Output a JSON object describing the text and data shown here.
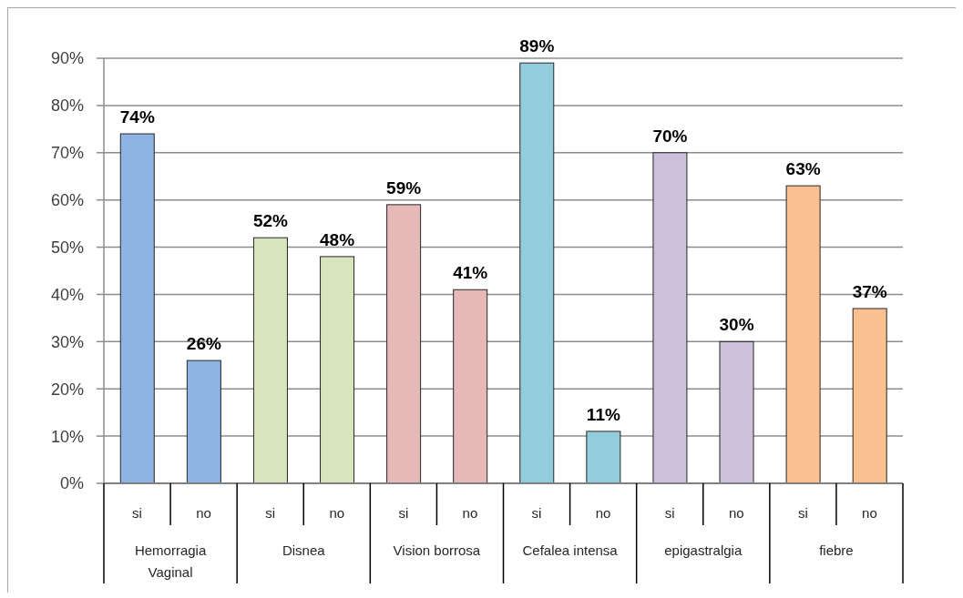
{
  "chart_data": {
    "type": "bar",
    "grid": "y",
    "categories": [
      "si",
      "no",
      "si",
      "no",
      "si",
      "no",
      "si",
      "no",
      "si",
      "no",
      "si",
      "no"
    ],
    "values": [
      74,
      26,
      52,
      48,
      59,
      41,
      89,
      11,
      70,
      30,
      63,
      37
    ],
    "colors": [
      "#8db4e2",
      "#8db4e2",
      "#d7e4bd",
      "#d7e4bd",
      "#e6b9b8",
      "#e6b9b8",
      "#93cddd",
      "#93cddd",
      "#ccc1da",
      "#ccc1da",
      "#fac090",
      "#fac090"
    ],
    "value_labels": [
      "74%",
      "26%",
      "52%",
      "48%",
      "59%",
      "41%",
      "89%",
      "11%",
      "70%",
      "30%",
      "63%",
      "37%"
    ],
    "annotations": [
      "Hemorragia Vaginal",
      "Disnea",
      "Vision borrosa",
      "Cefalea intensa",
      "epigastralgia",
      "fiebre"
    ],
    "ylim": [
      0,
      90
    ],
    "yticks": [
      {
        "value": 0,
        "label": "0%"
      },
      {
        "value": 10,
        "label": "10%"
      },
      {
        "value": 20,
        "label": "20%"
      },
      {
        "value": 30,
        "label": "30%"
      },
      {
        "value": 40,
        "label": "40%"
      },
      {
        "value": 50,
        "label": "50%"
      },
      {
        "value": 60,
        "label": "60%"
      },
      {
        "value": 70,
        "label": "70%"
      },
      {
        "value": 80,
        "label": "80%"
      },
      {
        "value": 90,
        "label": "90%"
      }
    ]
  }
}
